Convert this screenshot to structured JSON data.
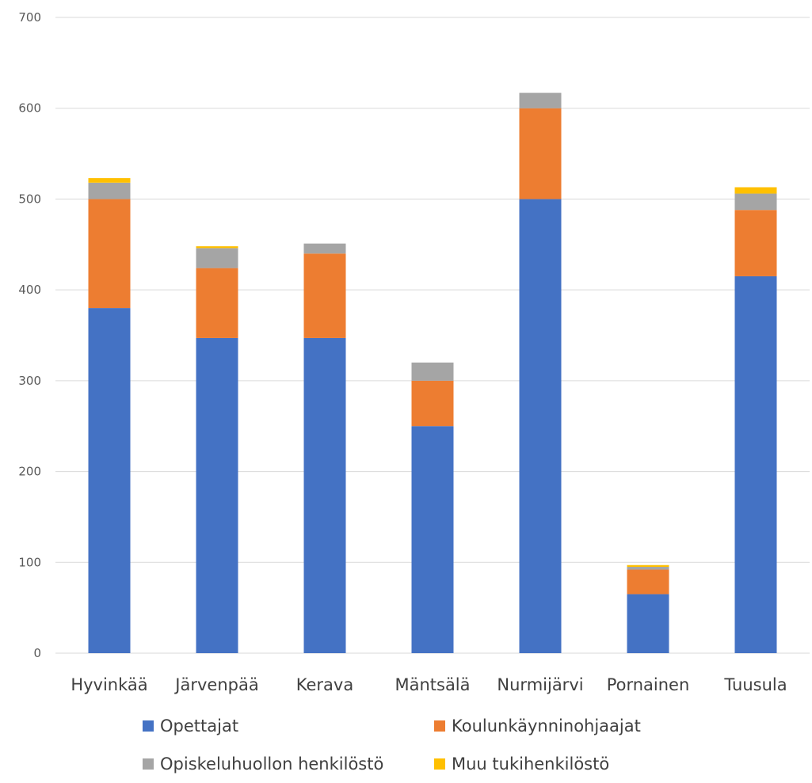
{
  "chart_data": {
    "type": "bar",
    "stacked": true,
    "title": "",
    "xlabel": "",
    "ylabel": "",
    "ylim": [
      0,
      700
    ],
    "yticks": [
      0,
      100,
      200,
      300,
      400,
      500,
      600,
      700
    ],
    "grid": "horizontal",
    "legend_position": "bottom",
    "categories": [
      "Hyvinkää",
      "Järvenpää",
      "Kerava",
      "Mäntsälä",
      "Nurmijärvi",
      "Pornainen",
      "Tuusula"
    ],
    "series": [
      {
        "name": "Opettajat",
        "color": "#4472C4",
        "values": [
          380,
          347,
          347,
          250,
          500,
          65,
          415
        ]
      },
      {
        "name": "Koulunkäynninohjaajat",
        "color": "#ED7D31",
        "values": [
          120,
          77,
          93,
          50,
          100,
          27,
          73
        ]
      },
      {
        "name": "Opiskeluhuollon henkilöstö",
        "color": "#A5A5A5",
        "values": [
          18,
          22,
          11,
          20,
          17,
          3,
          18
        ]
      },
      {
        "name": "Muu tukihenkilöstö",
        "color": "#FFC000",
        "values": [
          5,
          2,
          0,
          0,
          0,
          2,
          7
        ]
      }
    ]
  }
}
